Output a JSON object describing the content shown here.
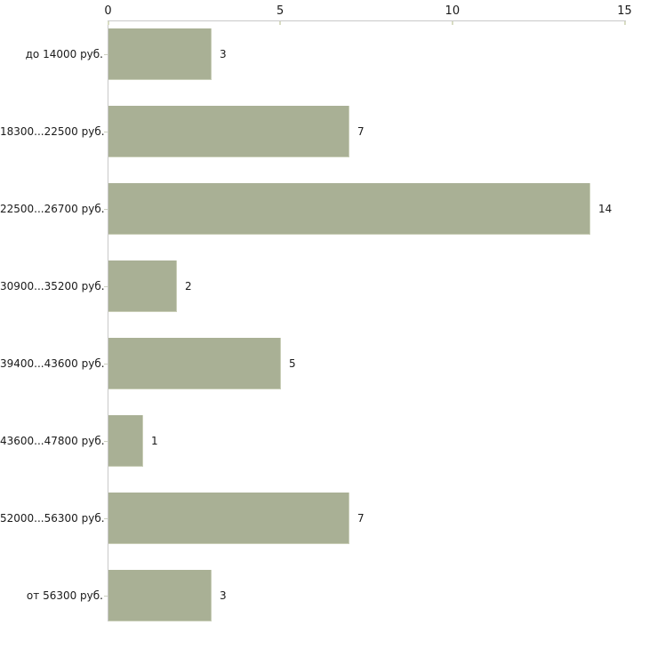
{
  "chart_data": {
    "type": "bar",
    "orientation": "horizontal",
    "title": "",
    "xlabel": "",
    "ylabel": "",
    "categories": [
      "до 14000 руб.",
      "18300...22500 руб.",
      "22500...26700 руб.",
      "30900...35200 руб.",
      "39400...43600 руб.",
      "43600...47800 руб.",
      "52000...56300 руб.",
      "от 56300 руб."
    ],
    "values": [
      3,
      7,
      14,
      2,
      5,
      1,
      7,
      3
    ],
    "xlim": [
      0,
      15
    ],
    "x_ticks": [
      0,
      5,
      10,
      15
    ],
    "axis_position": "top",
    "grid": false,
    "legend": false,
    "colors": {
      "bar_fill": "#a9b095",
      "bar_edge": "#c8cdb6",
      "axis_line": "#c9c9c9",
      "xtick_mark": "#d8dcc3",
      "category_tick": "#ccd0c0",
      "text": "#1a1a1a",
      "background": "#ffffff"
    }
  }
}
